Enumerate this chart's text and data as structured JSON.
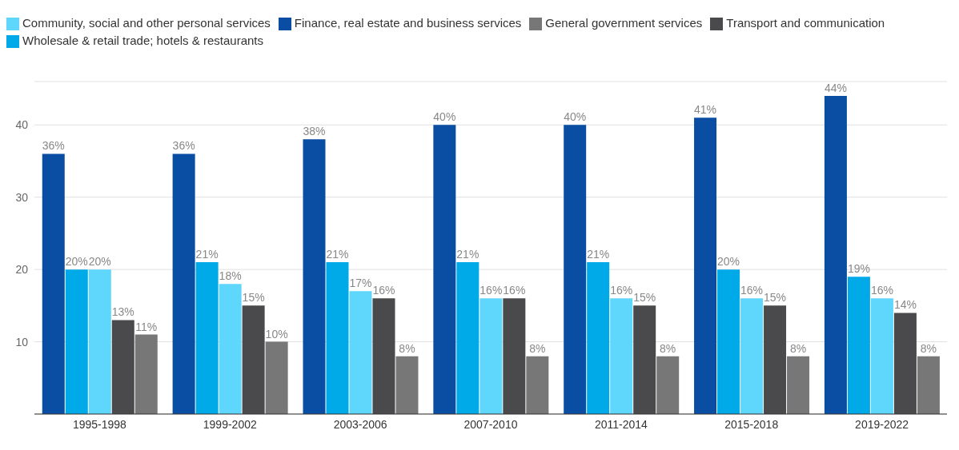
{
  "chart_data": {
    "type": "bar",
    "categories": [
      "1995-1998",
      "1999-2002",
      "2003-2006",
      "2007-2010",
      "2011-2014",
      "2015-2018",
      "2019-2022"
    ],
    "series": [
      {
        "name": "Finance, real estate and business services",
        "color": "#0a4ea3",
        "values": [
          36,
          36,
          38,
          40,
          40,
          41,
          44
        ],
        "value_labels": [
          "36%",
          "36%",
          "38%",
          "40%",
          "40%",
          "41%",
          "44%"
        ]
      },
      {
        "name": "Wholesale & retail trade; hotels & restaurants",
        "color": "#00a9e8",
        "values": [
          20,
          21,
          21,
          21,
          21,
          20,
          19
        ],
        "value_labels": [
          "20%",
          "21%",
          "21%",
          "21%",
          "21%",
          "20%",
          "19%"
        ]
      },
      {
        "name": "Community, social and other personal services",
        "color": "#5fd6fb",
        "values": [
          20,
          18,
          17,
          16,
          16,
          16,
          16
        ],
        "value_labels": [
          "20%",
          "18%",
          "17%",
          "16%",
          "16%",
          "16%",
          "16%"
        ]
      },
      {
        "name": "Transport and communication",
        "color": "#4a4a4d",
        "values": [
          13,
          15,
          16,
          16,
          15,
          15,
          14
        ],
        "value_labels": [
          "13%",
          "15%",
          "16%",
          "16%",
          "15%",
          "15%",
          "14%"
        ]
      },
      {
        "name": "General government services",
        "color": "#777777",
        "values": [
          11,
          10,
          8,
          8,
          8,
          8,
          8
        ],
        "value_labels": [
          "11%",
          "10%",
          "8%",
          "8%",
          "8%",
          "8%",
          "8%"
        ]
      }
    ],
    "ylim": [
      0,
      46
    ],
    "yticks": [
      10,
      20,
      30,
      40
    ],
    "grid": "y",
    "legend": "top left"
  }
}
